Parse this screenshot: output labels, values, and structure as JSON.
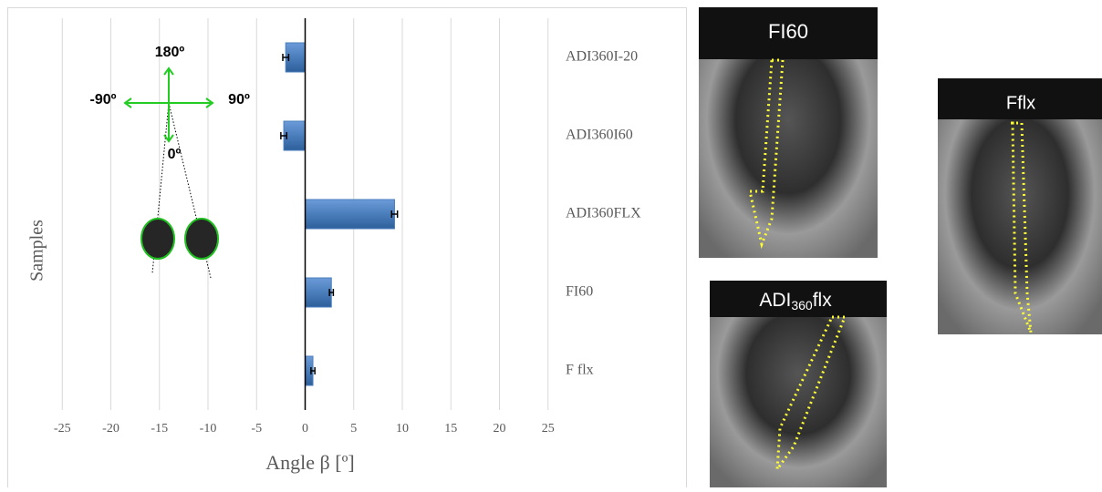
{
  "chart_data": {
    "type": "bar",
    "orientation": "horizontal",
    "y_axis_title": "Samples",
    "x_axis_title": "Angle β [º]",
    "categories": [
      "ADI360I-20",
      "ADI360I60",
      "ADI360FLX",
      "FI60",
      "F flx"
    ],
    "values": [
      -2,
      -2.2,
      9.2,
      2.7,
      0.8
    ],
    "errors": [
      0.3,
      0.3,
      0.3,
      0.2,
      0.2
    ],
    "color": "#4a7ebb",
    "xlim": [
      -30,
      30
    ],
    "xticks": [
      -25,
      -20,
      -15,
      -10,
      -5,
      0,
      5,
      10,
      15,
      20,
      25
    ],
    "grid": true,
    "annotations": [
      "180º",
      "-90º",
      "90º",
      "0º"
    ]
  },
  "images": [
    {
      "label": "FI60"
    },
    {
      "label": "Fflx"
    },
    {
      "label": "ADI",
      "label_sub": "360",
      "label_suffix": "flx"
    }
  ]
}
